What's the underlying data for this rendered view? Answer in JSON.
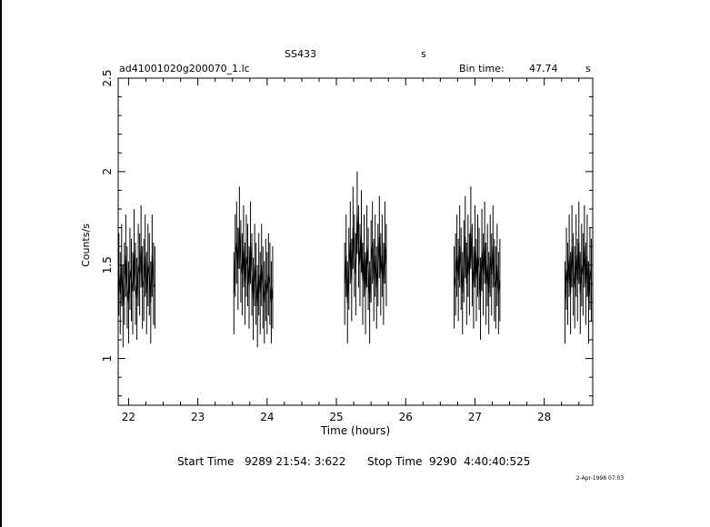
{
  "header": {
    "object": "SS433",
    "object_suffix": "s",
    "file_name": "ad41001020g200070_1.lc",
    "bin_time_label": "Bin time:",
    "bin_time_value": "47.74",
    "bin_time_unit": "s"
  },
  "footer": {
    "start_label": "Start Time",
    "start_value": "9289 21:54: 3:622",
    "stop_label": "Stop Time",
    "stop_value": "9290  4:40:40:525",
    "plot_date": "2-Apr-1998 07:03"
  },
  "chart_data": {
    "type": "line",
    "title": "",
    "xlabel": "Time (hours)",
    "ylabel": "Counts/s",
    "xlim": [
      21.85,
      28.7
    ],
    "ylim": [
      0.75,
      2.5
    ],
    "x_ticks": [
      "22",
      "23",
      "24",
      "25",
      "26",
      "27",
      "28"
    ],
    "y_ticks": [
      "1",
      "1.5",
      "2",
      "2.5"
    ],
    "grid": false,
    "legend": "none",
    "series": [
      {
        "style": "error-bars",
        "x": [
          21.86,
          21.88,
          21.9,
          21.92,
          21.94,
          21.96,
          21.98,
          22.0,
          22.02,
          22.04,
          22.06,
          22.08,
          22.1,
          22.12,
          22.14,
          22.16,
          22.18,
          22.2,
          22.22,
          22.24,
          22.26,
          22.28,
          22.3,
          22.32,
          22.34,
          22.36,
          22.38,
          23.52,
          23.54,
          23.56,
          23.58,
          23.6,
          23.62,
          23.64,
          23.66,
          23.68,
          23.7,
          23.72,
          23.74,
          23.76,
          23.78,
          23.8,
          23.82,
          23.84,
          23.86,
          23.88,
          23.9,
          23.92,
          23.94,
          23.96,
          23.98,
          24.0,
          24.02,
          24.04,
          24.06,
          24.08,
          25.12,
          25.14,
          25.16,
          25.18,
          25.2,
          25.22,
          25.24,
          25.26,
          25.28,
          25.3,
          25.32,
          25.34,
          25.36,
          25.38,
          25.4,
          25.42,
          25.44,
          25.46,
          25.48,
          25.5,
          25.52,
          25.54,
          25.56,
          25.58,
          25.6,
          25.62,
          25.64,
          25.66,
          25.68,
          25.7,
          25.72,
          26.7,
          26.72,
          26.74,
          26.76,
          26.78,
          26.8,
          26.82,
          26.84,
          26.86,
          26.88,
          26.9,
          26.92,
          26.94,
          26.96,
          26.98,
          27.0,
          27.02,
          27.04,
          27.06,
          27.08,
          27.1,
          27.12,
          27.14,
          27.16,
          27.18,
          27.2,
          27.22,
          27.24,
          27.26,
          27.28,
          27.3,
          27.32,
          27.34,
          27.36,
          28.3,
          28.32,
          28.34,
          28.36,
          28.38,
          28.4,
          28.42,
          28.44,
          28.46,
          28.48,
          28.5,
          28.52,
          28.54,
          28.56,
          28.58,
          28.6,
          28.62,
          28.64,
          28.66,
          28.68
        ],
        "y": [
          1.45,
          1.35,
          1.5,
          1.28,
          1.4,
          1.55,
          1.38,
          1.3,
          1.48,
          1.42,
          1.35,
          1.58,
          1.4,
          1.32,
          1.5,
          1.45,
          1.6,
          1.38,
          1.42,
          1.55,
          1.35,
          1.5,
          1.45,
          1.3,
          1.55,
          1.4,
          1.38,
          1.35,
          1.55,
          1.62,
          1.48,
          1.7,
          1.52,
          1.45,
          1.6,
          1.4,
          1.55,
          1.5,
          1.38,
          1.62,
          1.45,
          1.32,
          1.5,
          1.4,
          1.28,
          1.45,
          1.35,
          1.5,
          1.38,
          1.3,
          1.42,
          1.35,
          1.45,
          1.4,
          1.3,
          1.38,
          1.4,
          1.55,
          1.3,
          1.48,
          1.62,
          1.42,
          1.7,
          1.55,
          1.45,
          1.78,
          1.6,
          1.5,
          1.68,
          1.4,
          1.55,
          1.35,
          1.6,
          1.48,
          1.3,
          1.52,
          1.62,
          1.42,
          1.55,
          1.38,
          1.5,
          1.65,
          1.45,
          1.55,
          1.4,
          1.62,
          1.5,
          1.38,
          1.45,
          1.55,
          1.42,
          1.6,
          1.48,
          1.35,
          1.52,
          1.65,
          1.4,
          1.55,
          1.45,
          1.7,
          1.5,
          1.38,
          1.6,
          1.42,
          1.55,
          1.48,
          1.32,
          1.58,
          1.45,
          1.62,
          1.4,
          1.5,
          1.35,
          1.55,
          1.45,
          1.6,
          1.42,
          1.38,
          1.5,
          1.35,
          1.42,
          1.3,
          1.48,
          1.4,
          1.55,
          1.35,
          1.6,
          1.45,
          1.38,
          1.55,
          1.42,
          1.62,
          1.35,
          1.5,
          1.45,
          1.6,
          1.4,
          1.55,
          1.3,
          1.48,
          1.42
        ],
        "yerr": 0.22
      }
    ]
  }
}
